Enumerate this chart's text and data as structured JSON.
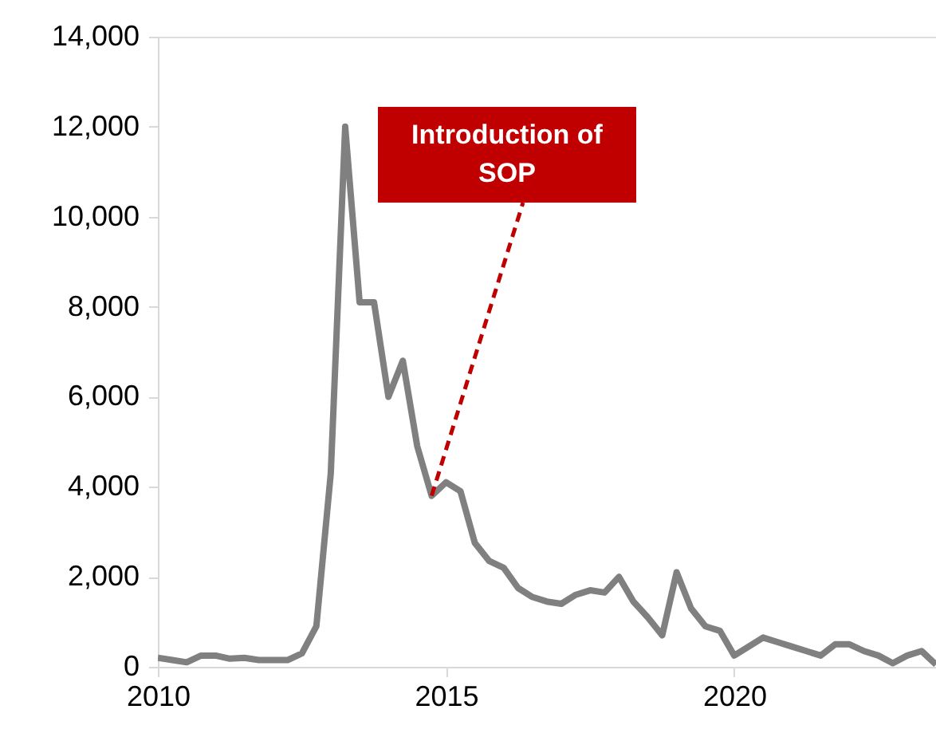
{
  "chart_data": {
    "type": "line",
    "x": [
      2010,
      2010.25,
      2010.5,
      2010.75,
      2011,
      2011.25,
      2011.5,
      2011.75,
      2012,
      2012.25,
      2012.5,
      2012.75,
      2013,
      2013.25,
      2013.5,
      2013.75,
      2014,
      2014.25,
      2014.5,
      2014.75,
      2015,
      2015.25,
      2015.5,
      2015.75,
      2016,
      2016.25,
      2016.5,
      2016.75,
      2017,
      2017.25,
      2017.5,
      2017.75,
      2018,
      2018.25,
      2018.5,
      2018.75,
      2019,
      2019.25,
      2019.5,
      2019.75,
      2020,
      2020.25,
      2020.5,
      2020.75,
      2021,
      2021.25,
      2021.5,
      2021.75,
      2022,
      2022.25,
      2022.5,
      2022.75,
      2023,
      2023.25,
      2023.5
    ],
    "series": [
      {
        "color": "#808080",
        "values": [
          200,
          150,
          100,
          250,
          250,
          180,
          200,
          150,
          150,
          150,
          300,
          900,
          4300,
          12000,
          8100,
          8100,
          6000,
          6800,
          4900,
          3800,
          4100,
          3900,
          2750,
          2350,
          2200,
          1750,
          1550,
          1450,
          1400,
          1600,
          1700,
          1650,
          2000,
          1450,
          1100,
          700,
          2100,
          1300,
          900,
          800,
          250,
          450,
          650,
          550,
          450,
          350,
          250,
          500,
          500,
          350,
          250,
          80,
          250,
          350,
          50
        ]
      }
    ],
    "xlim": [
      2010,
      2023.5
    ],
    "xticks": [
      2010,
      2015,
      2020
    ],
    "ylim": [
      0,
      14000
    ],
    "yticks": [
      {
        "value": 0,
        "label": "0"
      },
      {
        "value": 2000,
        "label": "2,000"
      },
      {
        "value": 4000,
        "label": "4,000"
      },
      {
        "value": 6000,
        "label": "6,000"
      },
      {
        "value": 8000,
        "label": "8,000"
      },
      {
        "value": 10000,
        "label": "10,000"
      },
      {
        "value": 12000,
        "label": "12,000"
      },
      {
        "value": 14000,
        "label": "14,000"
      }
    ],
    "annotations": [
      {
        "text": "Introduction of SOP",
        "x": 2014.75,
        "y": 3800
      }
    ],
    "grid": false,
    "marker": "none",
    "line_style": "solid"
  }
}
